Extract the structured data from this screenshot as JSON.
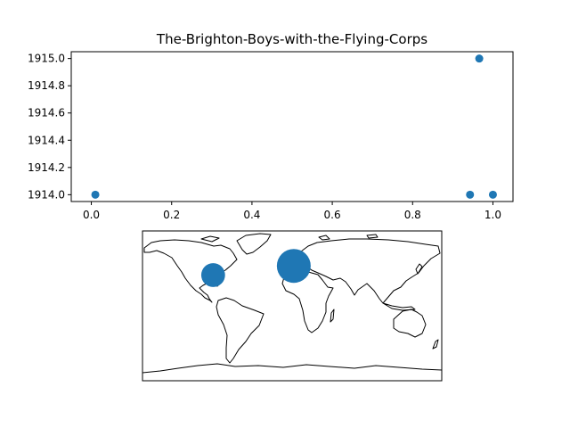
{
  "figure": {
    "background": "#ffffff",
    "point_color": "#1f77b4",
    "land_color": "#000000"
  },
  "chart_data": [
    {
      "type": "scatter",
      "title": "The-Brighton-Boys-with-the-Flying-Corps",
      "xlabel": "",
      "ylabel": "",
      "xlim": [
        -0.05,
        1.05
      ],
      "ylim": [
        1913.95,
        1915.05
      ],
      "x_ticks": [
        "0.0",
        "0.2",
        "0.4",
        "0.6",
        "0.8",
        "1.0"
      ],
      "y_ticks": [
        "1914.0",
        "1914.2",
        "1914.4",
        "1914.6",
        "1914.8",
        "1915.0"
      ],
      "grid": false,
      "series": [
        {
          "x": [
            0.01,
            0.943,
            0.966,
            1.0
          ],
          "y": [
            1914.0,
            1914.0,
            1915.0,
            1914.0
          ]
        }
      ]
    },
    {
      "type": "scatter",
      "subtype": "map",
      "projection": "equirectangular",
      "xlim": [
        -180,
        180
      ],
      "ylim": [
        -90,
        90
      ],
      "grid": false,
      "points": [
        {
          "lon": -95,
          "lat": 37,
          "relative_size": 0.45
        },
        {
          "lon": 2,
          "lat": 48,
          "relative_size": 1.0
        }
      ]
    }
  ]
}
